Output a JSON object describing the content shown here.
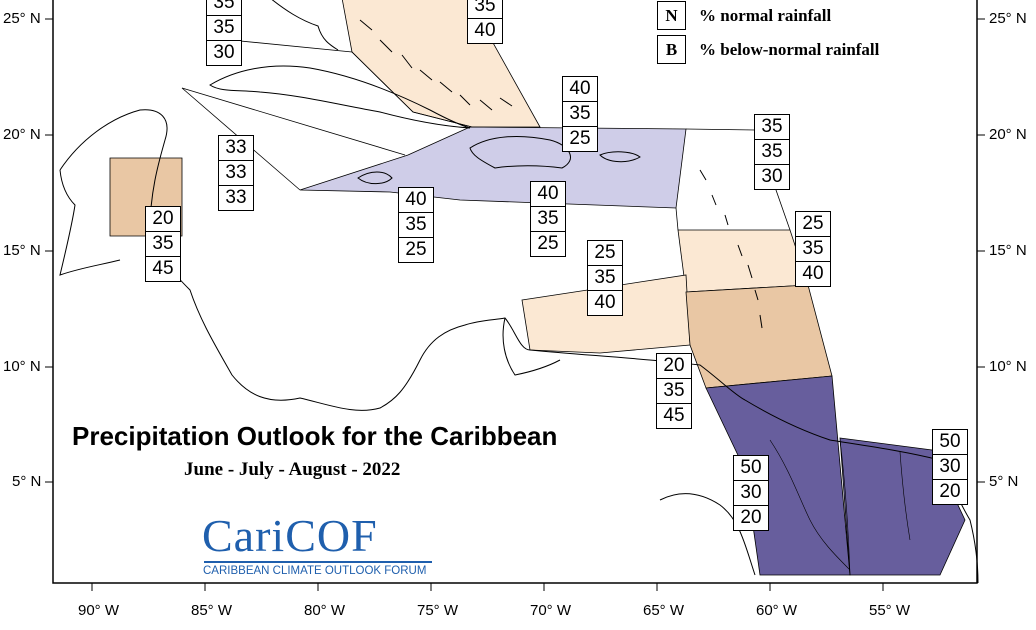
{
  "title": "Precipitation Outlook for the Caribbean",
  "subtitle": "June - July - August - 2022",
  "logo": {
    "main": "CariCOF",
    "tagline": "CARIBBEAN CLIMATE OUTLOOK FORUM"
  },
  "legend": [
    {
      "key": "N",
      "text": "% normal rainfall"
    },
    {
      "key": "B",
      "text": "% below-normal rainfall"
    }
  ],
  "axes": {
    "lat_ticks": [
      "25° N",
      "20° N",
      "15° N",
      "10° N",
      "5° N"
    ],
    "lon_ticks": [
      "90° W",
      "85° W",
      "80° W",
      "75° W",
      "70° W",
      "65° W",
      "60° W",
      "55° W"
    ]
  },
  "colors": {
    "light_tan": "#fbe8d3",
    "tan": "#e9c7a4",
    "lavender": "#cfcde8",
    "purple": "#675e9d",
    "land_outline": "#000000"
  },
  "regions": {
    "bahamas": {
      "probs": [
        null,
        35,
        40
      ],
      "fill": "light_tan"
    },
    "north_coast": {
      "probs": [
        35,
        35,
        30
      ]
    },
    "western_caribbean": {
      "probs": [
        33,
        33,
        33
      ]
    },
    "belize": {
      "probs": [
        20,
        35,
        45
      ],
      "fill": "tan"
    },
    "jamaica_cayman": {
      "probs": [
        40,
        35,
        25
      ],
      "fill": "lavender"
    },
    "hispaniola": {
      "probs": [
        40,
        35,
        25
      ],
      "fill": "lavender"
    },
    "puerto_rico_vi": {
      "probs": [
        40,
        35,
        25
      ],
      "fill": "lavender"
    },
    "leeward_islands": {
      "probs": [
        35,
        35,
        30
      ]
    },
    "windward_islands": {
      "probs": [
        25,
        35,
        40
      ],
      "fill": "light_tan"
    },
    "abc_islands": {
      "probs": [
        25,
        35,
        40
      ],
      "fill": "light_tan"
    },
    "trinidad": {
      "probs": [
        20,
        35,
        45
      ],
      "fill": "tan"
    },
    "guyana": {
      "probs": [
        50,
        30,
        20
      ],
      "fill": "purple"
    },
    "suriname_guiana": {
      "probs": [
        50,
        30,
        20
      ],
      "fill": "purple"
    }
  }
}
